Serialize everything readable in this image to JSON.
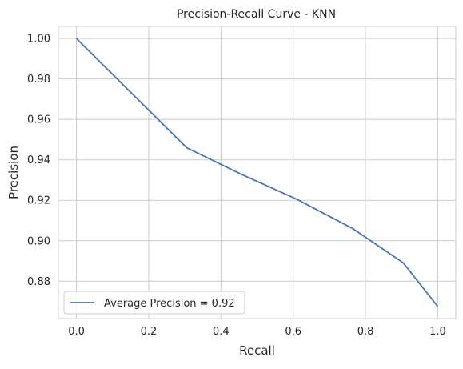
{
  "chart_data": {
    "type": "line",
    "title": "Precision-Recall Curve - KNN",
    "xlabel": "Recall",
    "ylabel": "Precision",
    "xlim": [
      -0.05,
      1.05
    ],
    "ylim": [
      0.8615,
      1.006
    ],
    "xticks": [
      0.0,
      0.2,
      0.4,
      0.6,
      0.8,
      1.0
    ],
    "xtick_labels": [
      "0.0",
      "0.2",
      "0.4",
      "0.6",
      "0.8",
      "1.0"
    ],
    "yticks": [
      0.88,
      0.9,
      0.92,
      0.94,
      0.96,
      0.98,
      1.0
    ],
    "ytick_labels": [
      "0.88",
      "0.90",
      "0.92",
      "0.94",
      "0.96",
      "0.98",
      "1.00"
    ],
    "grid": true,
    "legend_position": "lower-left",
    "series": [
      {
        "name": "Average Precision = 0.92",
        "color": "#4c72b0",
        "x": [
          0.0,
          0.305,
          0.455,
          0.61,
          0.765,
          0.905,
          1.0
        ],
        "y": [
          1.0,
          0.946,
          0.933,
          0.9205,
          0.906,
          0.889,
          0.8675
        ]
      }
    ]
  }
}
